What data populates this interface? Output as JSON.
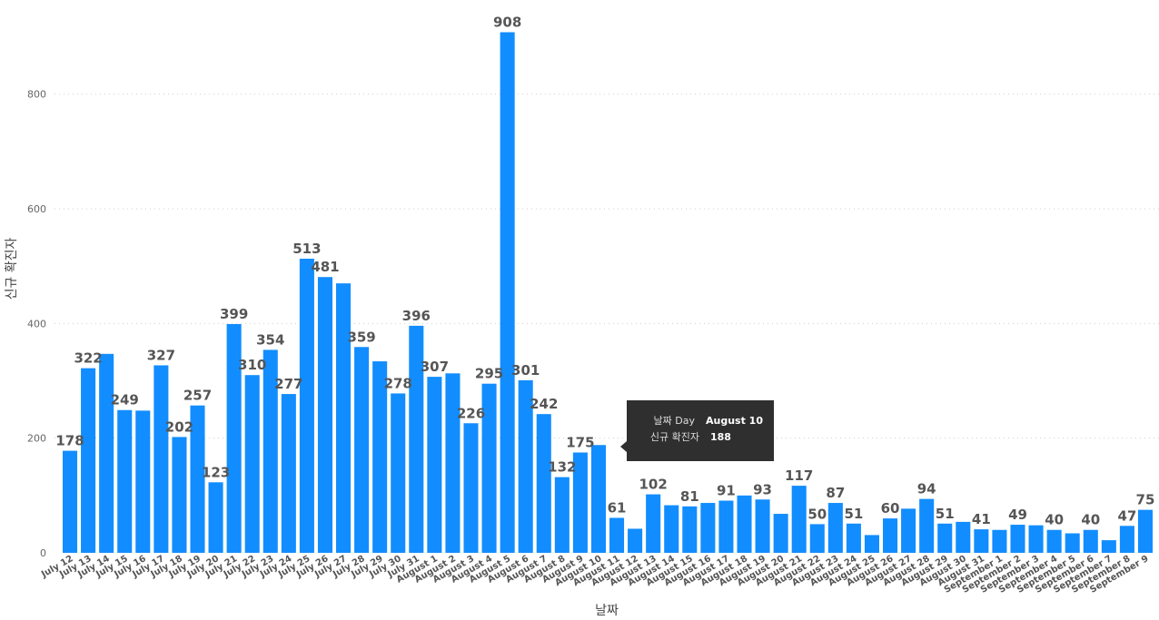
{
  "chart_data": {
    "type": "bar",
    "xlabel": "날짜",
    "ylabel": "신규 확진자",
    "ylim": [
      0,
      920
    ],
    "yticks": [
      0,
      200,
      400,
      600,
      800
    ],
    "grid": true,
    "bar_color": "#118DFF",
    "categories": [
      "July 12",
      "July 13",
      "July 14",
      "July 15",
      "July 16",
      "July 17",
      "July 18",
      "July 19",
      "July 20",
      "July 21",
      "July 22",
      "July 23",
      "July 24",
      "July 25",
      "July 26",
      "July 27",
      "July 28",
      "July 29",
      "July 30",
      "July 31",
      "August 1",
      "August 2",
      "August 3",
      "August 4",
      "August 5",
      "August 6",
      "August 7",
      "August 8",
      "August 9",
      "August 10",
      "August 11",
      "August 12",
      "August 13",
      "August 14",
      "August 15",
      "August 16",
      "August 17",
      "August 18",
      "August 19",
      "August 20",
      "August 21",
      "August 22",
      "August 23",
      "August 24",
      "August 25",
      "August 26",
      "August 27",
      "August 28",
      "August 29",
      "August 30",
      "August 31",
      "September 1",
      "September 2",
      "September 3",
      "September 4",
      "September 5",
      "September 6",
      "September 7",
      "September 8",
      "September 9"
    ],
    "values": [
      178,
      322,
      347,
      249,
      248,
      327,
      202,
      257,
      123,
      399,
      310,
      354,
      277,
      513,
      481,
      470,
      359,
      334,
      278,
      396,
      307,
      313,
      226,
      295,
      908,
      301,
      242,
      132,
      175,
      188,
      61,
      42,
      102,
      83,
      81,
      87,
      91,
      100,
      93,
      68,
      117,
      50,
      87,
      51,
      31,
      60,
      77,
      94,
      51,
      54,
      41,
      40,
      49,
      48,
      40,
      34,
      40,
      22,
      47,
      75
    ],
    "data_labels": [
      {
        "index": 0,
        "text": "178"
      },
      {
        "index": 1,
        "text": "322"
      },
      {
        "index": 3,
        "text": "249"
      },
      {
        "index": 5,
        "text": "327"
      },
      {
        "index": 6,
        "text": "202"
      },
      {
        "index": 7,
        "text": "257"
      },
      {
        "index": 8,
        "text": "123"
      },
      {
        "index": 9,
        "text": "399"
      },
      {
        "index": 10,
        "text": "310"
      },
      {
        "index": 11,
        "text": "354"
      },
      {
        "index": 12,
        "text": "277"
      },
      {
        "index": 13,
        "text": "513"
      },
      {
        "index": 14,
        "text": "481"
      },
      {
        "index": 16,
        "text": "359"
      },
      {
        "index": 18,
        "text": "278"
      },
      {
        "index": 19,
        "text": "396"
      },
      {
        "index": 20,
        "text": "307"
      },
      {
        "index": 22,
        "text": "226"
      },
      {
        "index": 23,
        "text": "295"
      },
      {
        "index": 24,
        "text": "908"
      },
      {
        "index": 25,
        "text": "301"
      },
      {
        "index": 26,
        "text": "242"
      },
      {
        "index": 27,
        "text": "132"
      },
      {
        "index": 28,
        "text": "175"
      },
      {
        "index": 30,
        "text": "61"
      },
      {
        "index": 32,
        "text": "102"
      },
      {
        "index": 34,
        "text": "81"
      },
      {
        "index": 36,
        "text": "91"
      },
      {
        "index": 38,
        "text": "93"
      },
      {
        "index": 40,
        "text": "117"
      },
      {
        "index": 41,
        "text": "50"
      },
      {
        "index": 42,
        "text": "87"
      },
      {
        "index": 43,
        "text": "51"
      },
      {
        "index": 45,
        "text": "60"
      },
      {
        "index": 47,
        "text": "94"
      },
      {
        "index": 48,
        "text": "51"
      },
      {
        "index": 50,
        "text": "41"
      },
      {
        "index": 52,
        "text": "49"
      },
      {
        "index": 54,
        "text": "40"
      },
      {
        "index": 56,
        "text": "40"
      },
      {
        "index": 58,
        "text": "47"
      },
      {
        "index": 59,
        "text": "75"
      }
    ]
  },
  "tooltip": {
    "day_key": "날짜 Day",
    "day_value": "August 10",
    "count_key": "신규 확진자",
    "count_value": "188"
  }
}
